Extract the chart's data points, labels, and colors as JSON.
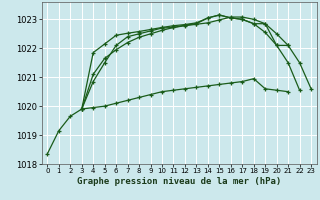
{
  "title": "Graphe pression niveau de la mer (hPa)",
  "bg_color": "#cce8ec",
  "grid_color": "#ffffff",
  "line_color": "#1a5c1a",
  "xlim": [
    -0.5,
    23.5
  ],
  "ylim": [
    1018,
    1023.6
  ],
  "yticks": [
    1018,
    1019,
    1020,
    1021,
    1022,
    1023
  ],
  "xticks": [
    0,
    1,
    2,
    3,
    4,
    5,
    6,
    7,
    8,
    9,
    10,
    11,
    12,
    13,
    14,
    15,
    16,
    17,
    18,
    19,
    20,
    21,
    22,
    23
  ],
  "series": [
    [
      1018.35,
      1019.15,
      1019.65,
      1019.9,
      1020.85,
      1021.5,
      1022.1,
      1022.4,
      1022.5,
      1022.6,
      1022.7,
      1022.72,
      1022.8,
      1022.85,
      1023.05,
      1023.15,
      1023.05,
      1023.0,
      1022.85,
      1022.55,
      1022.1,
      1021.5,
      1020.55,
      null
    ],
    [
      null,
      null,
      null,
      1019.9,
      1021.85,
      1022.15,
      1022.45,
      1022.52,
      1022.58,
      1022.65,
      1022.72,
      1022.78,
      1022.82,
      1022.88,
      1023.05,
      1023.15,
      1023.05,
      1023.0,
      1022.85,
      1022.85,
      1022.1,
      1022.1,
      null,
      null
    ],
    [
      null,
      null,
      null,
      1019.9,
      1021.1,
      1021.65,
      1021.95,
      1022.2,
      1022.38,
      1022.5,
      1022.62,
      1022.72,
      1022.78,
      1022.83,
      1022.88,
      1022.98,
      1023.08,
      1023.08,
      1023.0,
      1022.85,
      1022.5,
      1022.1,
      1021.5,
      1020.6
    ],
    [
      null,
      null,
      null,
      1019.9,
      1019.95,
      1020.0,
      1020.1,
      1020.2,
      1020.3,
      1020.4,
      1020.5,
      1020.55,
      1020.6,
      1020.65,
      1020.7,
      1020.75,
      1020.8,
      1020.85,
      1020.95,
      1020.6,
      1020.55,
      1020.5,
      null,
      null
    ]
  ]
}
